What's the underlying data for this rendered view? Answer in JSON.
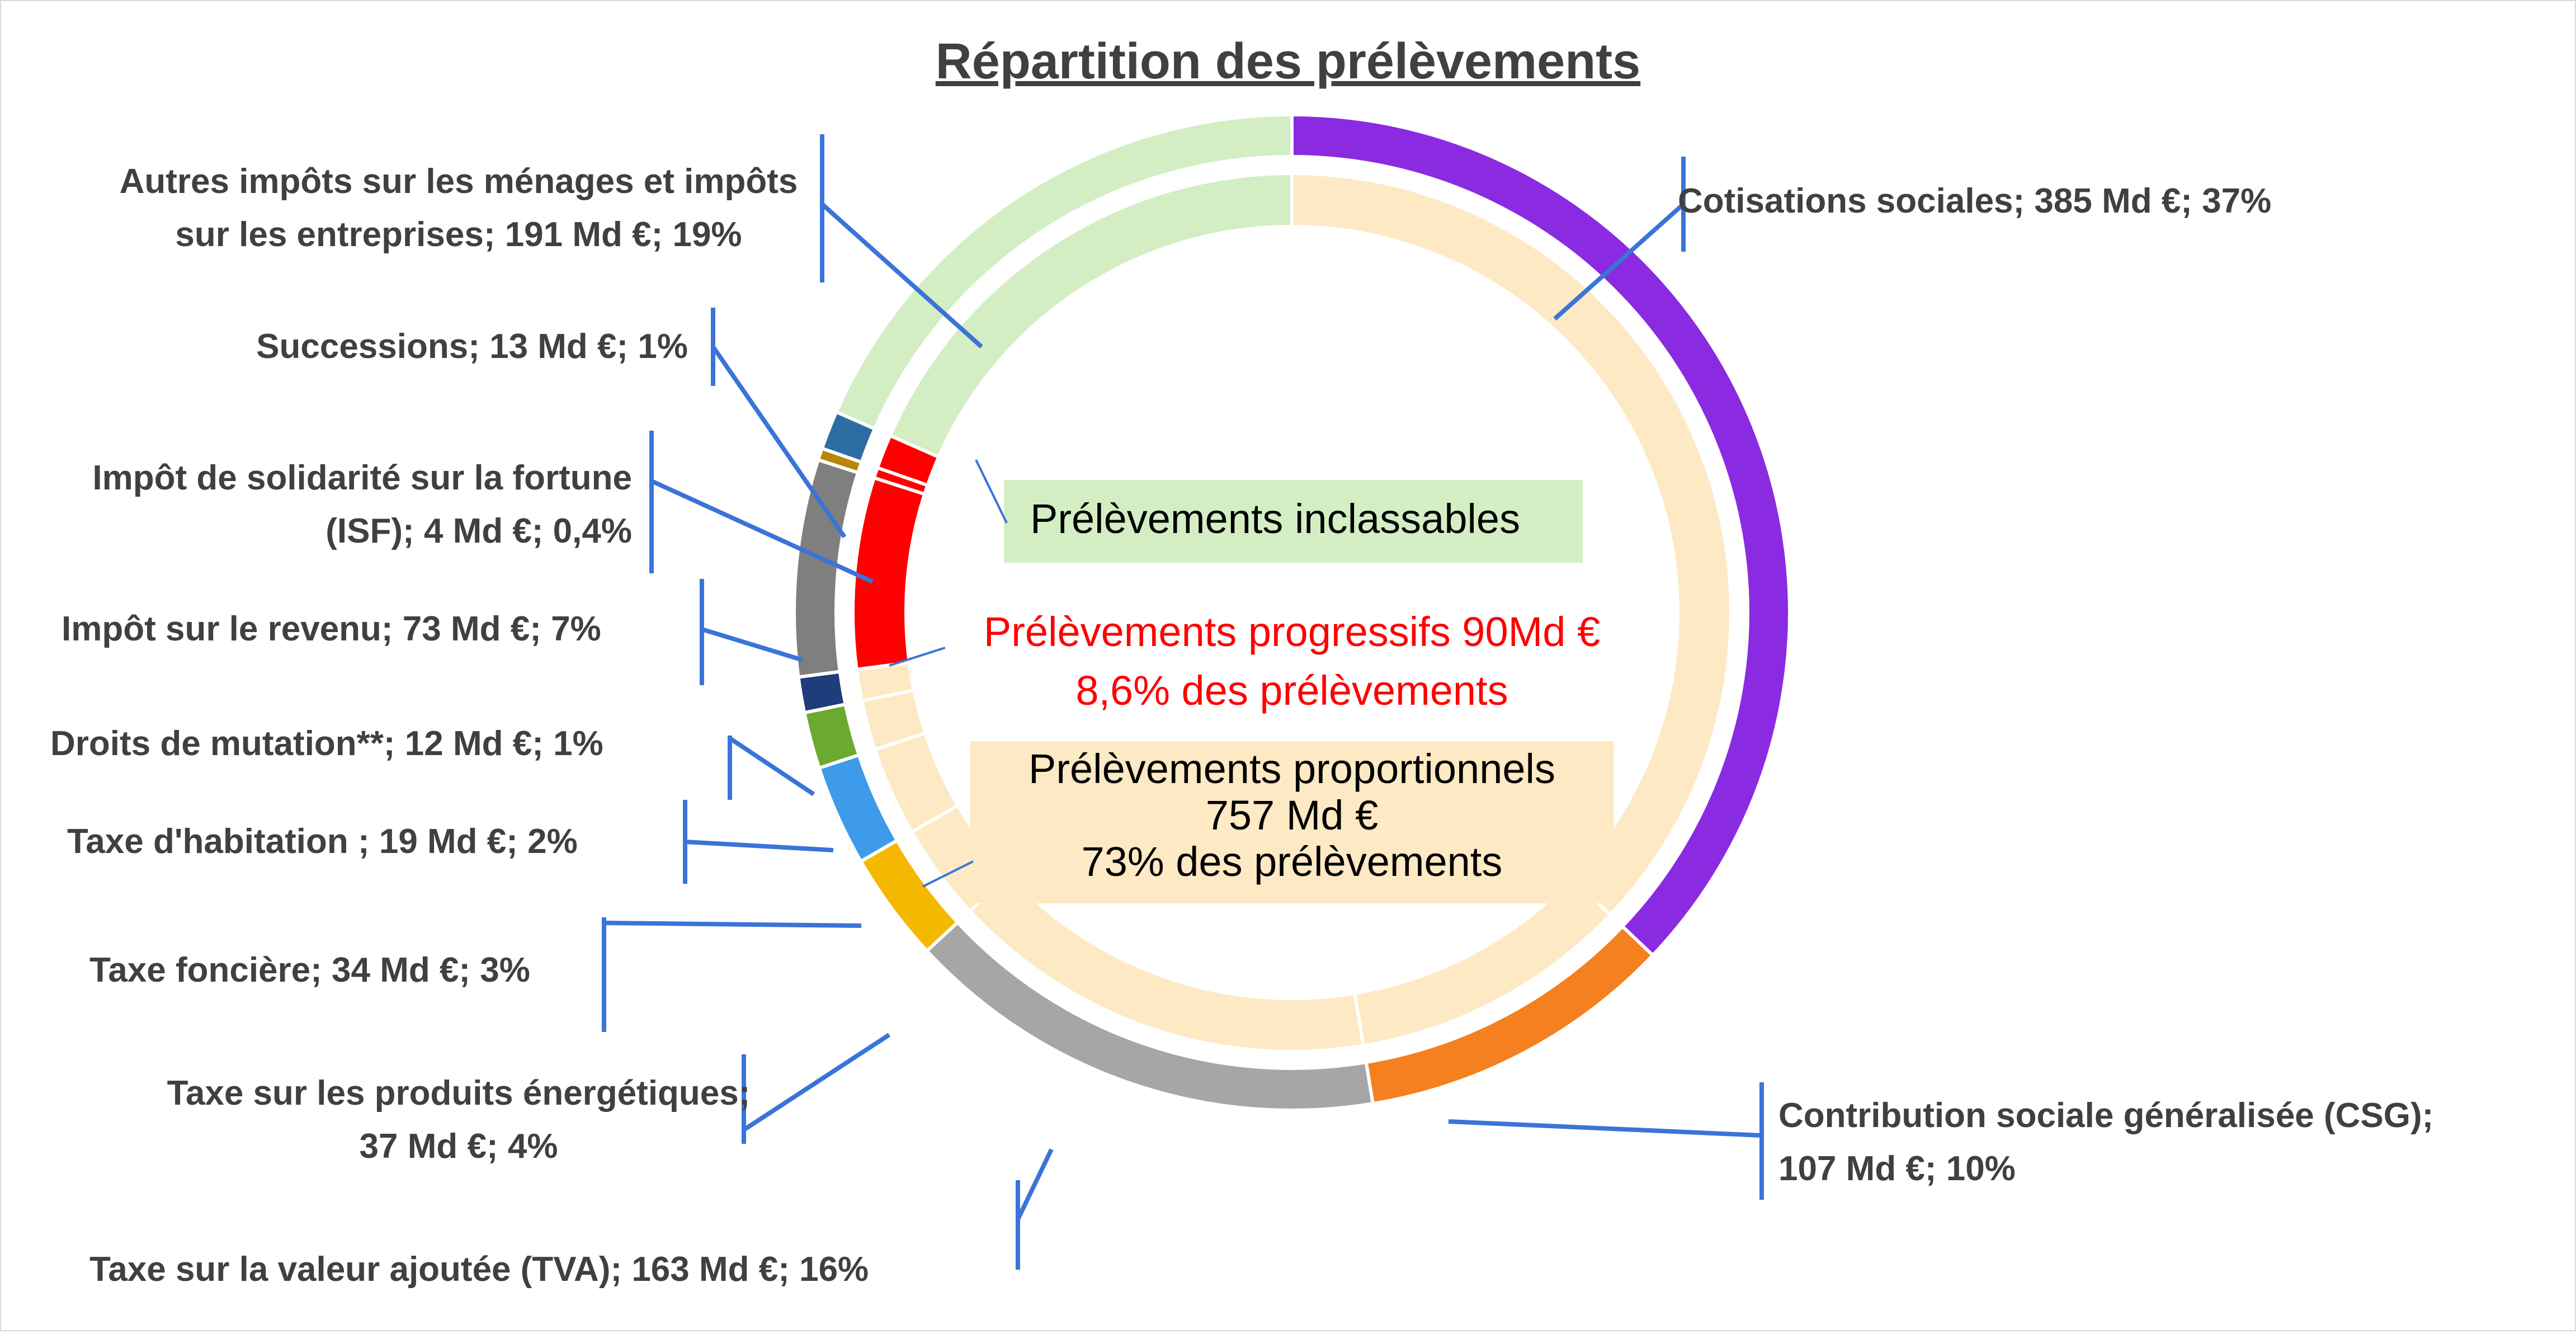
{
  "chart_data": {
    "type": "donut",
    "title": "Répartition des prélèvements",
    "unit": "Md €",
    "outer_ring": {
      "series": [
        {
          "name": "Cotisations sociales",
          "value": 385,
          "percent": "37%",
          "color": "#8a2be2",
          "label_lines": [
            "Cotisations sociales;  385  Md €; 37%"
          ]
        },
        {
          "name": "Contribution sociale généralisée (CSG)",
          "value": 107,
          "percent": "10%",
          "color": "#f4801f",
          "label_lines": [
            "Contribution sociale généralisée (CSG);",
            "107  Md €; 10%"
          ]
        },
        {
          "name": "Taxe sur la valeur ajoutée (TVA)",
          "value": 163,
          "percent": "16%",
          "color": "#a6a6a6",
          "label_lines": [
            "Taxe sur la valeur ajoutée (TVA);  163  Md €; 16%"
          ]
        },
        {
          "name": "Taxe sur les produits énergétiques",
          "value": 37,
          "percent": "4%",
          "color": "#f5b800",
          "label_lines": [
            "Taxe sur les produits énergétiques;",
            "37  Md €; 4%"
          ]
        },
        {
          "name": "Taxe foncière",
          "value": 34,
          "percent": "3%",
          "color": "#3d9be9",
          "label_lines": [
            "Taxe foncière;  34  Md €; 3%"
          ]
        },
        {
          "name": "Taxe d'habitation",
          "value": 19,
          "percent": "2%",
          "color": "#6aaa2e",
          "label_lines": [
            "Taxe d'habitation ;  19  Md €; 2%"
          ]
        },
        {
          "name": "Droits de mutation**",
          "value": 12,
          "percent": "1%",
          "color": "#1f3d7a",
          "label_lines": [
            "Droits de mutation**;  12  Md €; 1%"
          ]
        },
        {
          "name": "Impôt sur le revenu",
          "value": 73,
          "percent": "7%",
          "color": "#7f7f7f",
          "label_lines": [
            "Impôt sur le revenu;  73  Md €; 7%"
          ]
        },
        {
          "name": "Impôt de solidarité sur la fortune (ISF)",
          "value": 4,
          "percent": "0,4%",
          "color": "#b8860b",
          "label_lines": [
            "Impôt de solidarité sur la fortune",
            "(ISF);  4  Md €; 0,4%"
          ]
        },
        {
          "name": "Successions",
          "value": 13,
          "percent": "1%",
          "color": "#2e6da4",
          "label_lines": [
            "Successions;  13  Md €; 1%"
          ]
        },
        {
          "name": "Autres impôts sur les ménages et impôts sur les entreprises",
          "value": 191,
          "percent": "19%",
          "color": "#d4eec4",
          "label_lines": [
            "Autres impôts sur les ménages et impôts",
            "sur les entreprises;  191  Md €; 19%"
          ]
        }
      ]
    },
    "inner_ring": {
      "series": [
        {
          "name": "Prélèvements proportionnels",
          "members": [
            "Cotisations sociales",
            "Contribution sociale généralisée (CSG)",
            "Taxe sur la valeur ajoutée (TVA)",
            "Taxe sur les produits énergétiques",
            "Taxe foncière",
            "Taxe d'habitation",
            "Droits de mutation**"
          ],
          "color": "#fde9c4"
        },
        {
          "name": "Prélèvements progressifs",
          "members": [
            "Impôt sur le revenu",
            "Impôt de solidarité sur la fortune (ISF)",
            "Successions"
          ],
          "color": "#ff0000"
        },
        {
          "name": "Prélèvements inclassables",
          "members": [
            "Autres impôts sur les ménages et impôts sur les entreprises"
          ],
          "color": "#d4eec4"
        }
      ]
    },
    "annotations": {
      "inclassables": {
        "lines": [
          "Prélèvements  inclassables"
        ],
        "fill": "#d4eec4",
        "text_color": "#000000"
      },
      "progressifs": {
        "lines": [
          "Prélèvements  progressifs  90Md €",
          "8,6% des prélèvements"
        ],
        "text_color": "#ff0000"
      },
      "proportionnels": {
        "lines": [
          "Prélèvements  proportionnels",
          "757 Md €",
          "73% des prélèvements"
        ],
        "fill": "#fde9c4",
        "text_color": "#000000"
      }
    },
    "leader_color": "#3a74d8"
  }
}
